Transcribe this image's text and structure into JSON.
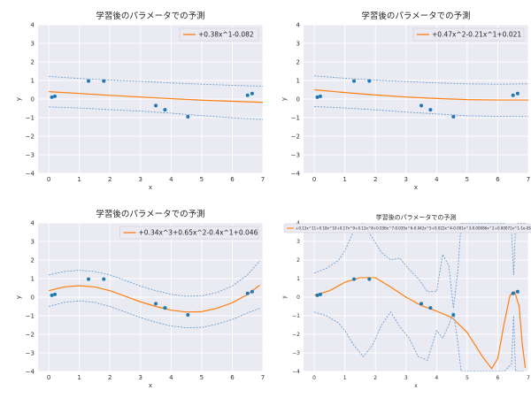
{
  "chart_data": [
    {
      "type": "line",
      "title": "学習後のパラメータでの予測",
      "xlabel": "x",
      "ylabel": "y",
      "xlim": [
        -0.35,
        7.0
      ],
      "ylim": [
        -4,
        4
      ],
      "xticks": [
        0,
        1,
        2,
        3,
        4,
        5,
        6,
        7
      ],
      "yticks": [
        -4,
        -3,
        -2,
        -1,
        0,
        1,
        2,
        3,
        4
      ],
      "grid": true,
      "legend_position": "top-right",
      "series": [
        {
          "name": "+0.38x^1-0.082",
          "kind": "line",
          "color": "#ff7f0e",
          "x": [
            0.0,
            1.0,
            2.0,
            3.0,
            4.0,
            5.0,
            6.0,
            7.0
          ],
          "y": [
            0.4,
            0.3,
            0.2,
            0.11,
            0.02,
            -0.06,
            -0.12,
            -0.18
          ]
        },
        {
          "kind": "band-upper",
          "color": "#6a9ed0",
          "x": [
            0.0,
            1.0,
            2.0,
            3.0,
            4.0,
            5.0,
            6.0,
            7.0
          ],
          "y": [
            1.22,
            1.11,
            1.02,
            0.95,
            0.87,
            0.8,
            0.74,
            0.69
          ]
        },
        {
          "kind": "band-lower",
          "color": "#6a9ed0",
          "x": [
            0.0,
            1.0,
            2.0,
            3.0,
            4.0,
            5.0,
            6.0,
            7.0
          ],
          "y": [
            -0.42,
            -0.48,
            -0.57,
            -0.65,
            -0.76,
            -0.89,
            -1.01,
            -1.1
          ]
        },
        {
          "kind": "scatter",
          "color": "#1f77b4",
          "x": [
            0.1,
            0.2,
            1.3,
            1.8,
            3.5,
            3.8,
            4.55,
            6.5,
            6.65
          ],
          "y": [
            0.1,
            0.15,
            0.97,
            0.97,
            -0.35,
            -0.58,
            -0.95,
            0.2,
            0.3
          ]
        }
      ]
    },
    {
      "type": "line",
      "title": "学習後のパラメータでの予測",
      "xlabel": "x",
      "ylabel": "y",
      "xlim": [
        -0.35,
        7.0
      ],
      "ylim": [
        -4,
        4
      ],
      "xticks": [
        0,
        1,
        2,
        3,
        4,
        5,
        6,
        7
      ],
      "yticks": [
        -4,
        -3,
        -2,
        -1,
        0,
        1,
        2,
        3,
        4
      ],
      "grid": true,
      "legend_position": "top-right",
      "series": [
        {
          "name": "+0.47x^2-0.21x^1+0.021",
          "kind": "line",
          "color": "#ff7f0e",
          "x": [
            0.0,
            1.0,
            2.0,
            3.0,
            4.0,
            5.0,
            6.0,
            7.0
          ],
          "y": [
            0.5,
            0.35,
            0.22,
            0.11,
            0.03,
            -0.03,
            -0.05,
            -0.05
          ]
        },
        {
          "kind": "band-upper",
          "color": "#6a9ed0",
          "x": [
            0.0,
            1.0,
            2.0,
            3.0,
            4.0,
            5.0,
            6.0,
            7.0
          ],
          "y": [
            1.25,
            1.12,
            1.02,
            0.94,
            0.87,
            0.82,
            0.8,
            0.82
          ]
        },
        {
          "kind": "band-lower",
          "color": "#6a9ed0",
          "x": [
            0.0,
            1.0,
            2.0,
            3.0,
            4.0,
            5.0,
            6.0,
            7.0
          ],
          "y": [
            -0.4,
            -0.48,
            -0.58,
            -0.7,
            -0.8,
            -0.9,
            -0.93,
            -0.94
          ]
        },
        {
          "kind": "scatter",
          "color": "#1f77b4",
          "x": [
            0.1,
            0.2,
            1.3,
            1.8,
            3.5,
            3.8,
            4.55,
            6.5,
            6.65
          ],
          "y": [
            0.1,
            0.15,
            0.97,
            0.97,
            -0.35,
            -0.58,
            -0.95,
            0.2,
            0.3
          ]
        }
      ]
    },
    {
      "type": "line",
      "title": "学習後のパラメータでの予測",
      "xlabel": "x",
      "ylabel": "y",
      "xlim": [
        -0.35,
        7.0
      ],
      "ylim": [
        -4,
        4
      ],
      "xticks": [
        0,
        1,
        2,
        3,
        4,
        5,
        6,
        7
      ],
      "yticks": [
        -4,
        -3,
        -2,
        -1,
        0,
        1,
        2,
        3,
        4
      ],
      "grid": true,
      "legend_position": "top-right",
      "series": [
        {
          "name": "+0.34x^3+0.65x^2-0.4x^1+0.046",
          "kind": "line",
          "color": "#ff7f0e",
          "x": [
            0.0,
            0.5,
            1.0,
            1.5,
            2.0,
            2.5,
            3.0,
            3.5,
            4.0,
            4.5,
            5.0,
            5.5,
            6.0,
            6.5,
            6.9
          ],
          "y": [
            0.35,
            0.55,
            0.62,
            0.55,
            0.35,
            0.05,
            -0.25,
            -0.5,
            -0.7,
            -0.8,
            -0.78,
            -0.6,
            -0.3,
            0.15,
            0.65
          ]
        },
        {
          "kind": "band-upper",
          "color": "#6a9ed0",
          "x": [
            0.0,
            0.5,
            1.0,
            1.5,
            2.0,
            2.5,
            3.0,
            3.5,
            4.0,
            4.5,
            5.0,
            5.5,
            6.0,
            6.5,
            6.9
          ],
          "y": [
            1.2,
            1.38,
            1.45,
            1.38,
            1.2,
            0.9,
            0.6,
            0.35,
            0.15,
            0.05,
            0.07,
            0.25,
            0.6,
            1.2,
            1.95
          ]
        },
        {
          "kind": "band-lower",
          "color": "#6a9ed0",
          "x": [
            0.0,
            0.5,
            1.0,
            1.5,
            2.0,
            2.5,
            3.0,
            3.5,
            4.0,
            4.5,
            5.0,
            5.5,
            6.0,
            6.5,
            6.9
          ],
          "y": [
            -0.5,
            -0.28,
            -0.2,
            -0.28,
            -0.5,
            -0.8,
            -1.1,
            -1.35,
            -1.55,
            -1.65,
            -1.63,
            -1.45,
            -1.2,
            -0.85,
            -0.6
          ]
        },
        {
          "kind": "scatter",
          "color": "#1f77b4",
          "x": [
            0.1,
            0.2,
            1.3,
            1.8,
            3.5,
            3.8,
            4.55,
            6.5,
            6.65
          ],
          "y": [
            0.1,
            0.15,
            0.97,
            0.97,
            -0.35,
            -0.58,
            -0.95,
            0.2,
            0.3
          ]
        }
      ]
    },
    {
      "type": "line",
      "title": "学習後のパラメータでの予測",
      "xlabel": "x",
      "ylabel": "y",
      "xlim": [
        -0.35,
        7.0
      ],
      "ylim": [
        -4,
        4
      ],
      "xticks": [
        0,
        1,
        2,
        3,
        4,
        5,
        6,
        7
      ],
      "yticks": [
        -4,
        -3,
        -2,
        -1,
        0,
        1,
        2,
        3,
        4
      ],
      "grid": true,
      "legend_position": "top",
      "series": [
        {
          "name": "+0.13x^11+0.18x^10+0.17x^9+0.13x^8+0.036x^7-0.035x^6-0.042x^5+0.022x^4-0.001x^3-0.00086x^2+0.00071x^1-1e-05",
          "kind": "line",
          "color": "#ff7f0e",
          "x": [
            0.0,
            0.5,
            1.0,
            1.5,
            2.0,
            2.5,
            3.0,
            3.5,
            4.0,
            4.5,
            5.0,
            5.5,
            5.8,
            6.0,
            6.2,
            6.4,
            6.55,
            6.7,
            6.8,
            6.9
          ],
          "y": [
            0.1,
            0.35,
            0.8,
            1.05,
            1.05,
            0.55,
            0.0,
            -0.45,
            -0.75,
            -1.1,
            -1.9,
            -3.2,
            -3.85,
            -3.3,
            -1.5,
            0.1,
            0.3,
            -0.5,
            -2.5,
            -3.8
          ]
        },
        {
          "kind": "band-upper",
          "color": "#6a9ed0",
          "x": [
            0.0,
            0.4,
            0.8,
            1.0,
            1.3,
            1.6,
            1.9,
            2.2,
            2.5,
            2.8,
            3.1,
            3.4,
            3.7,
            4.0,
            4.2,
            4.4,
            4.55,
            4.7,
            4.8,
            5.0,
            5.3,
            5.6,
            5.9,
            6.2,
            6.45,
            6.52,
            6.58,
            6.65,
            6.75,
            6.9
          ],
          "y": [
            1.3,
            1.55,
            2.0,
            2.5,
            3.6,
            4.0,
            3.2,
            2.4,
            2.0,
            2.1,
            1.5,
            1.0,
            0.3,
            0.3,
            2.3,
            1.7,
            -0.6,
            1.5,
            4.0,
            4.0,
            4.0,
            4.0,
            4.0,
            4.0,
            3.5,
            1.2,
            3.8,
            4.0,
            4.0,
            4.0
          ]
        },
        {
          "kind": "band-lower",
          "color": "#6a9ed0",
          "x": [
            0.0,
            0.4,
            0.8,
            1.0,
            1.3,
            1.6,
            1.9,
            2.2,
            2.5,
            2.8,
            3.1,
            3.4,
            3.7,
            4.0,
            4.2,
            4.4,
            4.55,
            4.7,
            4.8,
            5.0,
            5.3,
            5.6,
            5.9,
            6.2,
            6.45,
            6.52,
            6.58,
            6.65,
            6.75,
            6.9
          ],
          "y": [
            -0.8,
            -1.0,
            -1.4,
            -1.8,
            -2.6,
            -3.2,
            -2.6,
            -1.5,
            -0.8,
            -1.6,
            -2.2,
            -3.2,
            -3.4,
            -1.8,
            -2.2,
            -1.5,
            -0.8,
            -2.5,
            -4.0,
            -4.0,
            -4.0,
            -4.0,
            -4.0,
            -4.0,
            -3.6,
            -1.0,
            -4.0,
            -4.0,
            -4.0,
            -4.0
          ]
        },
        {
          "kind": "scatter",
          "color": "#1f77b4",
          "x": [
            0.1,
            0.2,
            1.3,
            1.8,
            3.5,
            3.8,
            4.55,
            6.5,
            6.65
          ],
          "y": [
            0.1,
            0.15,
            0.97,
            0.97,
            -0.35,
            -0.58,
            -0.95,
            0.2,
            0.3
          ]
        }
      ]
    }
  ]
}
